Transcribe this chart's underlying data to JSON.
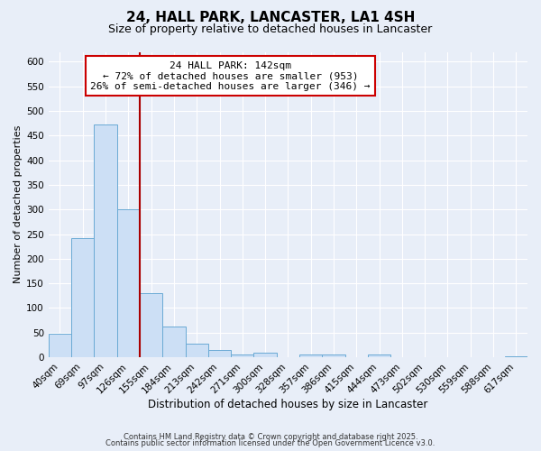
{
  "title": "24, HALL PARK, LANCASTER, LA1 4SH",
  "subtitle": "Size of property relative to detached houses in Lancaster",
  "xlabel": "Distribution of detached houses by size in Lancaster",
  "ylabel": "Number of detached properties",
  "bar_labels": [
    "40sqm",
    "69sqm",
    "97sqm",
    "126sqm",
    "155sqm",
    "184sqm",
    "213sqm",
    "242sqm",
    "271sqm",
    "300sqm",
    "328sqm",
    "357sqm",
    "386sqm",
    "415sqm",
    "444sqm",
    "473sqm",
    "502sqm",
    "530sqm",
    "559sqm",
    "588sqm",
    "617sqm"
  ],
  "bar_values": [
    48,
    242,
    473,
    300,
    130,
    63,
    28,
    15,
    5,
    10,
    0,
    5,
    5,
    0,
    5,
    0,
    0,
    0,
    0,
    0,
    2
  ],
  "bar_color": "#ccdff5",
  "bar_edge_color": "#6aaad4",
  "vline_x": 3.5,
  "vline_color": "#aa0000",
  "annotation_title": "24 HALL PARK: 142sqm",
  "annotation_line1": "← 72% of detached houses are smaller (953)",
  "annotation_line2": "26% of semi-detached houses are larger (346) →",
  "annotation_box_color": "#ffffff",
  "annotation_box_edge": "#cc0000",
  "ylim": [
    0,
    620
  ],
  "yticks": [
    0,
    50,
    100,
    150,
    200,
    250,
    300,
    350,
    400,
    450,
    500,
    550,
    600
  ],
  "footer1": "Contains HM Land Registry data © Crown copyright and database right 2025.",
  "footer2": "Contains public sector information licensed under the Open Government Licence v3.0.",
  "bg_color": "#e8eef8",
  "plot_bg_color": "#e8eef8",
  "grid_color": "#ffffff",
  "title_fontsize": 11,
  "subtitle_fontsize": 9,
  "xlabel_fontsize": 8.5,
  "ylabel_fontsize": 8,
  "tick_fontsize": 7.5,
  "footer_fontsize": 6,
  "ann_fontsize": 8
}
